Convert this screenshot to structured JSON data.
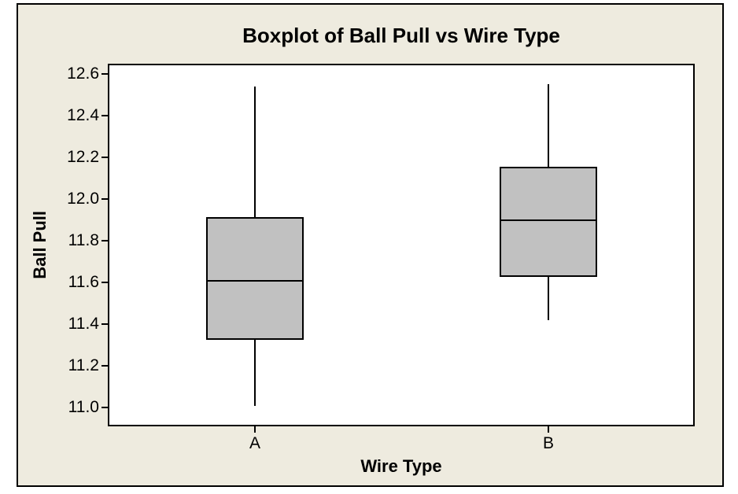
{
  "figure": {
    "page_background": "#ffffff",
    "plot_background": "#eeebdf",
    "data_region_background": "#ffffff",
    "border_color": "#000000",
    "box_fill": "#c1c1c1",
    "line_color": "#000000"
  },
  "chart_data": {
    "type": "boxplot",
    "title": "Boxplot of Ball Pull vs Wire Type",
    "xlabel": "Wire Type",
    "ylabel": "Ball Pull",
    "categories": [
      "A",
      "B"
    ],
    "yticks": [
      11.0,
      11.2,
      11.4,
      11.6,
      11.8,
      12.0,
      12.2,
      12.4,
      12.6
    ],
    "ylim": [
      10.91,
      12.65
    ],
    "grid": false,
    "legend": false,
    "series": [
      {
        "category": "A",
        "whisker_low": 11.01,
        "q1": 11.33,
        "median": 11.61,
        "q3": 11.91,
        "whisker_high": 12.54
      },
      {
        "category": "B",
        "whisker_low": 11.42,
        "q1": 11.63,
        "median": 11.9,
        "q3": 12.15,
        "whisker_high": 12.55
      }
    ]
  }
}
